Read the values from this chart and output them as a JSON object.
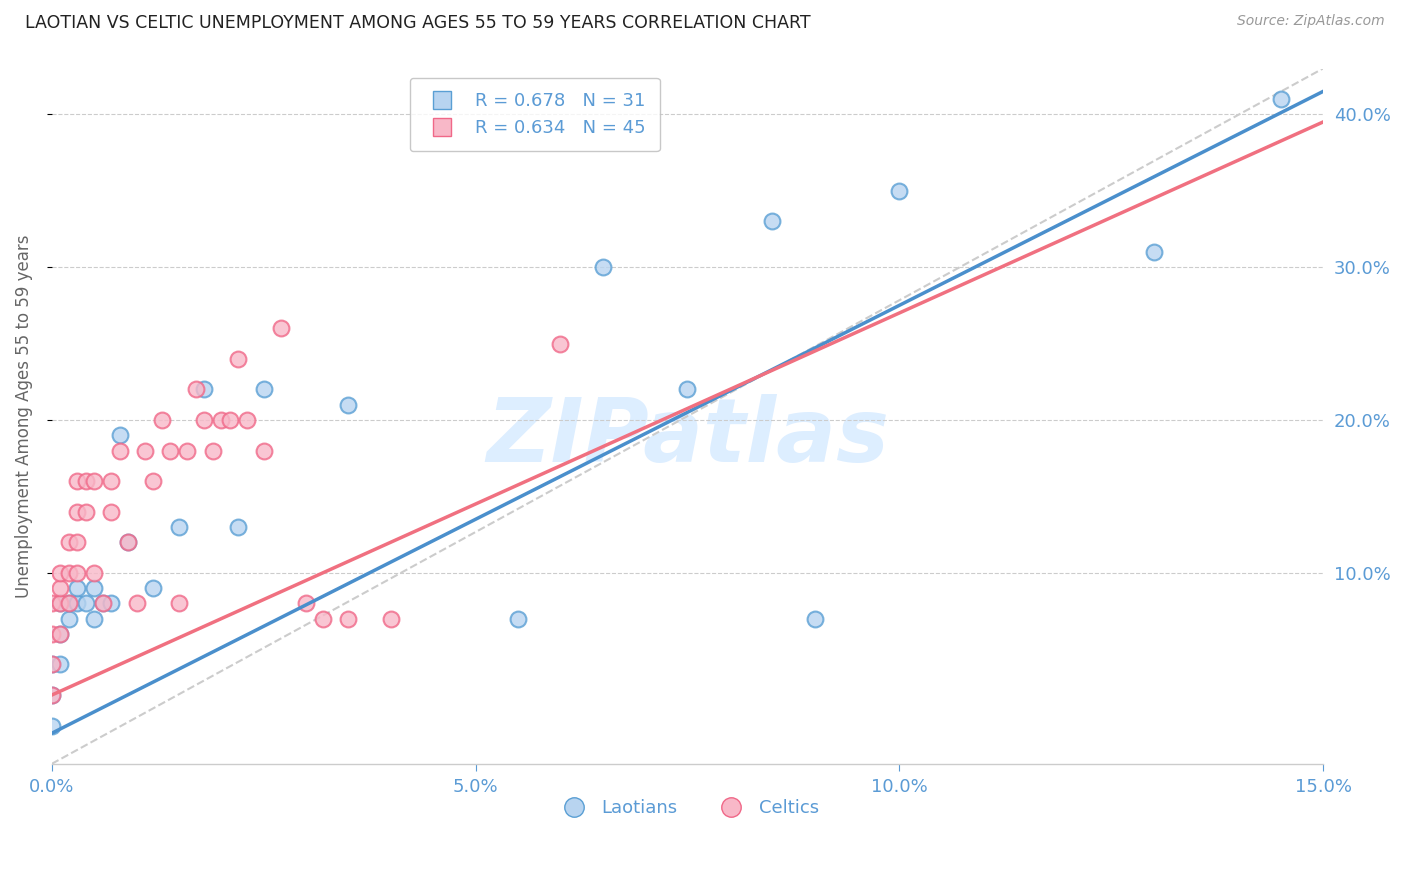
{
  "title": "LAOTIAN VS CELTIC UNEMPLOYMENT AMONG AGES 55 TO 59 YEARS CORRELATION CHART",
  "source": "Source: ZipAtlas.com",
  "ylabel": "Unemployment Among Ages 55 to 59 years",
  "laotian_label": "Laotians",
  "celtic_label": "Celtics",
  "laotian_R": 0.678,
  "laotian_N": 31,
  "celtic_R": 0.634,
  "celtic_N": 45,
  "laotian_fill_color": "#b8d4f0",
  "celtic_fill_color": "#f8b8c8",
  "laotian_edge_color": "#5a9fd4",
  "celtic_edge_color": "#f06888",
  "laotian_line_color": "#4a8fcc",
  "celtic_line_color": "#f07080",
  "ref_line_color": "#cccccc",
  "title_color": "#222222",
  "axis_label_color": "#666666",
  "tick_color": "#5b9bd5",
  "watermark_color": "#ddeeff",
  "watermark_text": "ZIPatlas",
  "xmin": 0.0,
  "xmax": 0.15,
  "ymin": -0.025,
  "ymax": 0.43,
  "laotian_x": [
    0.0,
    0.0,
    0.0,
    0.001,
    0.001,
    0.001,
    0.002,
    0.002,
    0.003,
    0.003,
    0.004,
    0.005,
    0.005,
    0.006,
    0.007,
    0.008,
    0.009,
    0.012,
    0.015,
    0.018,
    0.022,
    0.025,
    0.035,
    0.055,
    0.065,
    0.075,
    0.085,
    0.09,
    0.1,
    0.13,
    0.145
  ],
  "laotian_y": [
    0.0,
    0.02,
    0.04,
    0.04,
    0.06,
    0.08,
    0.07,
    0.08,
    0.08,
    0.09,
    0.08,
    0.07,
    0.09,
    0.08,
    0.08,
    0.19,
    0.12,
    0.09,
    0.13,
    0.22,
    0.13,
    0.22,
    0.21,
    0.07,
    0.3,
    0.22,
    0.33,
    0.07,
    0.35,
    0.31,
    0.41
  ],
  "celtic_x": [
    0.0,
    0.0,
    0.0,
    0.0,
    0.001,
    0.001,
    0.001,
    0.001,
    0.002,
    0.002,
    0.002,
    0.003,
    0.003,
    0.003,
    0.003,
    0.004,
    0.004,
    0.005,
    0.005,
    0.006,
    0.007,
    0.007,
    0.008,
    0.009,
    0.01,
    0.011,
    0.012,
    0.013,
    0.014,
    0.015,
    0.016,
    0.017,
    0.018,
    0.019,
    0.02,
    0.021,
    0.022,
    0.023,
    0.025,
    0.027,
    0.03,
    0.032,
    0.035,
    0.04,
    0.06
  ],
  "celtic_y": [
    0.02,
    0.04,
    0.06,
    0.08,
    0.06,
    0.08,
    0.09,
    0.1,
    0.08,
    0.1,
    0.12,
    0.1,
    0.12,
    0.14,
    0.16,
    0.14,
    0.16,
    0.1,
    0.16,
    0.08,
    0.14,
    0.16,
    0.18,
    0.12,
    0.08,
    0.18,
    0.16,
    0.2,
    0.18,
    0.08,
    0.18,
    0.22,
    0.2,
    0.18,
    0.2,
    0.2,
    0.24,
    0.2,
    0.18,
    0.26,
    0.08,
    0.07,
    0.07,
    0.07,
    0.25
  ],
  "lao_line_x0": 0.0,
  "lao_line_y0": -0.005,
  "lao_line_x1": 0.15,
  "lao_line_y1": 0.415,
  "celt_line_x0": 0.0,
  "celt_line_y0": 0.02,
  "celt_line_x1": 0.15,
  "celt_line_y1": 0.395,
  "ref_line_x0": 0.0,
  "ref_line_y0": -0.025,
  "ref_line_x1": 0.15,
  "ref_line_y1": 0.43
}
